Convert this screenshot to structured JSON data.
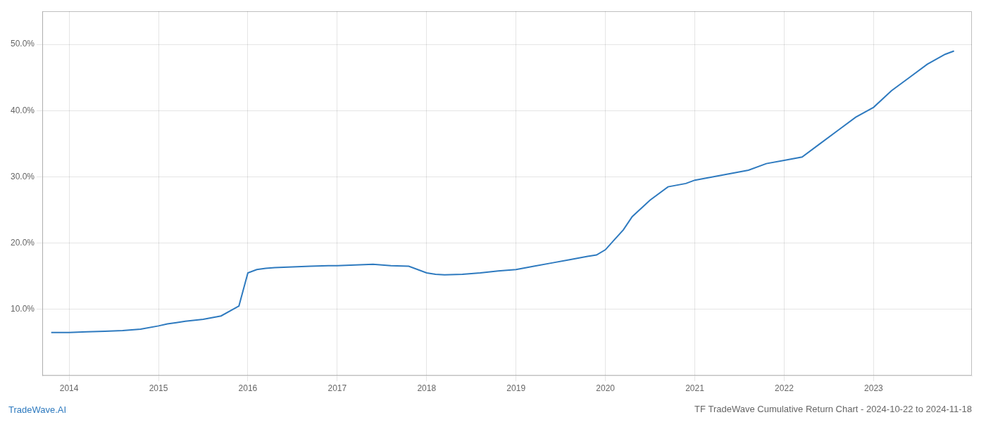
{
  "chart_data": {
    "type": "line",
    "title": "TF TradeWave Cumulative Return Chart - 2024-10-22 to 2024-11-18",
    "annotations": [
      "TradeWave.AI"
    ],
    "color": "#2e7abf",
    "x": [
      2013.8,
      2014.0,
      2014.2,
      2014.4,
      2014.6,
      2014.8,
      2015.0,
      2015.1,
      2015.2,
      2015.3,
      2015.5,
      2015.7,
      2015.9,
      2016.0,
      2016.1,
      2016.2,
      2016.3,
      2016.5,
      2016.7,
      2016.9,
      2017.0,
      2017.2,
      2017.4,
      2017.6,
      2017.8,
      2018.0,
      2018.1,
      2018.2,
      2018.4,
      2018.6,
      2018.8,
      2019.0,
      2019.2,
      2019.4,
      2019.6,
      2019.8,
      2019.9,
      2020.0,
      2020.1,
      2020.2,
      2020.3,
      2020.5,
      2020.7,
      2020.9,
      2021.0,
      2021.2,
      2021.4,
      2021.6,
      2021.8,
      2022.0,
      2022.2,
      2022.4,
      2022.6,
      2022.8,
      2023.0,
      2023.2,
      2023.4,
      2023.6,
      2023.8,
      2023.9
    ],
    "values": [
      6.5,
      6.5,
      6.6,
      6.7,
      6.8,
      7.0,
      7.5,
      7.8,
      8.0,
      8.2,
      8.5,
      9.0,
      10.5,
      15.5,
      16.0,
      16.2,
      16.3,
      16.4,
      16.5,
      16.6,
      16.6,
      16.7,
      16.8,
      16.6,
      16.5,
      15.5,
      15.3,
      15.2,
      15.3,
      15.5,
      15.8,
      16.0,
      16.5,
      17.0,
      17.5,
      18.0,
      18.2,
      19.0,
      20.5,
      22.0,
      24.0,
      26.5,
      28.5,
      29.0,
      29.5,
      30.0,
      30.5,
      31.0,
      32.0,
      32.5,
      33.0,
      35.0,
      37.0,
      39.0,
      40.5,
      43.0,
      45.0,
      47.0,
      48.5,
      49.0
    ],
    "xlim": [
      2013.7,
      2024.1
    ],
    "xticks": [
      2014,
      2015,
      2016,
      2017,
      2018,
      2019,
      2020,
      2021,
      2022,
      2023
    ],
    "ylim": [
      0,
      55
    ],
    "yticks": [
      {
        "value": 10.0,
        "label": "10.0%"
      },
      {
        "value": 20.0,
        "label": "20.0%"
      },
      {
        "value": 30.0,
        "label": "30.0%"
      },
      {
        "value": 40.0,
        "label": "40.0%"
      },
      {
        "value": 50.0,
        "label": "50.0%"
      }
    ],
    "grid": true
  }
}
